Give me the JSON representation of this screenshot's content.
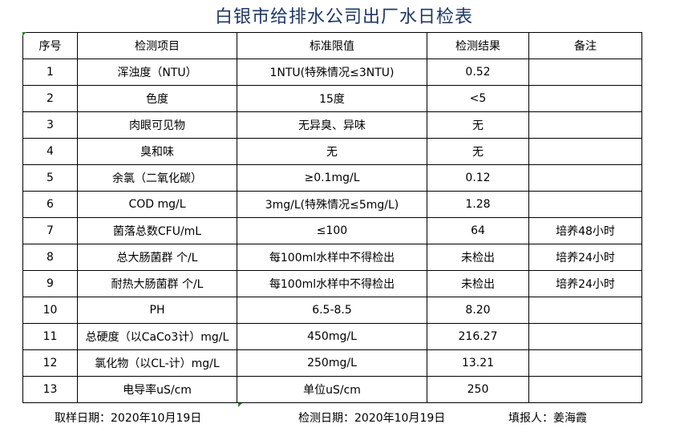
{
  "title": "白银市给排水公司出厂水日检表",
  "headers": [
    "序号",
    "检测项目",
    "标准限值",
    "检测结果",
    "备注"
  ],
  "rows": [
    [
      "1",
      "浑浊度（NTU）",
      "1NTU(特殊情况≤3NTU)",
      "0.52",
      ""
    ],
    [
      "2",
      "色度",
      "15度",
      "<5",
      ""
    ],
    [
      "3",
      "肉眼可见物",
      "无异臭、异味",
      "无",
      ""
    ],
    [
      "4",
      "臭和味",
      "无",
      "无",
      ""
    ],
    [
      "5",
      "余氯（二氧化碳）",
      "≥0.1mg/L",
      "0.12",
      ""
    ],
    [
      "6",
      "COD        mg/L",
      "3mg/L(特殊情况≤5mg/L)",
      "1.28",
      ""
    ],
    [
      "7",
      "菌落总数CFU/mL",
      "≤100",
      "64",
      "培养48小时"
    ],
    [
      "8",
      "总大肠菌群 个/L",
      "每100ml水样中不得检出",
      "未检出",
      "培养24小时"
    ],
    [
      "9",
      "耐热大肠菌群 个/L",
      "每100ml水样中不得检出",
      "未检出",
      "培养24小时"
    ],
    [
      "10",
      "PH",
      "6.5-8.5",
      "8.20",
      ""
    ],
    [
      "11",
      "总硬度（以CaCo3计）mg/L",
      "450mg/L",
      "216.27",
      ""
    ],
    [
      "12",
      "氯化物（以CL-计）mg/L",
      "250mg/L",
      "13.21",
      ""
    ],
    [
      "13",
      "电导率uS/cm",
      "单位uS/cm",
      "250",
      ""
    ]
  ],
  "footer": {
    "sampling_date": "取样日期：2020年10月19日",
    "test_date": "检测日期：2020年10月19日",
    "reporter": "填报人：姜海霞"
  },
  "colors": {
    "title": "#1f3864",
    "cell_marker": "#2e7d32"
  }
}
